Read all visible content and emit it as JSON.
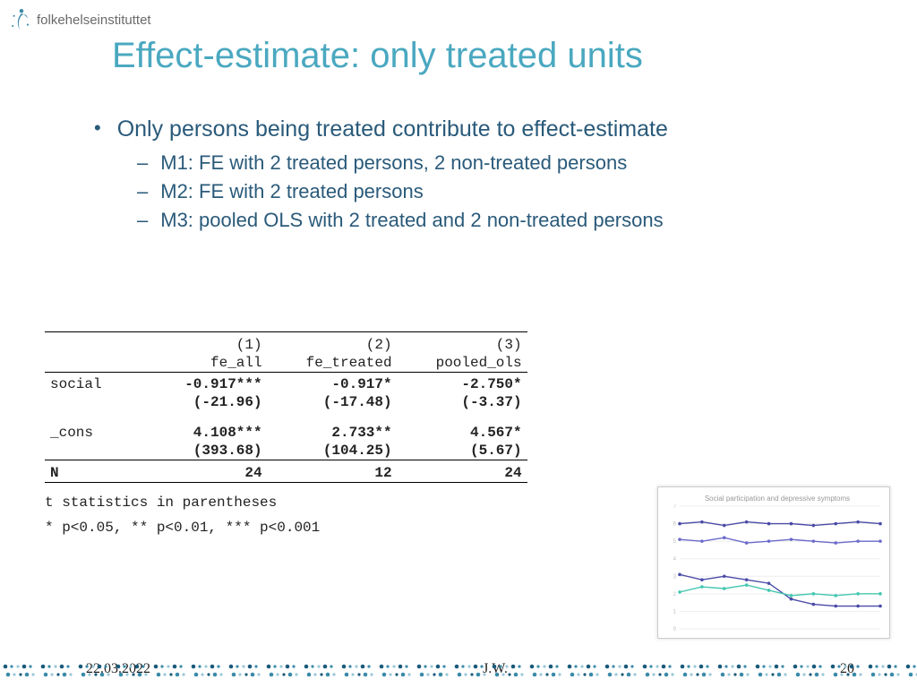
{
  "logo_text": "folkehelseinstituttet",
  "slide_title": "Effect-estimate: only treated units",
  "bullets": {
    "main": "Only persons being treated contribute to effect-estimate",
    "subs": [
      "M1: FE with 2 treated persons, 2 non-treated persons",
      "M2: FE with 2 treated persons",
      "M3: pooled OLS with 2 treated and 2 non-treated persons"
    ]
  },
  "table": {
    "col_nums": [
      "(1)",
      "(2)",
      "(3)"
    ],
    "col_names": [
      "fe_all",
      "fe_treated",
      "pooled_ols"
    ],
    "rows": [
      {
        "label": "social",
        "vals": [
          "-0.917***",
          "-0.917*",
          "-2.750*"
        ],
        "tstats": [
          "(-21.96)",
          "(-17.48)",
          "(-3.37)"
        ]
      },
      {
        "label": "_cons",
        "vals": [
          "4.108***",
          "2.733**",
          "4.567*"
        ],
        "tstats": [
          "(393.68)",
          "(104.25)",
          "(5.67)"
        ]
      }
    ],
    "n_label": "N",
    "n_vals": [
      "24",
      "12",
      "24"
    ],
    "footnote1": "t statistics in parentheses",
    "footnote2": "* p<0.05, ** p<0.01, *** p<0.001"
  },
  "mini_chart": {
    "title": "Social participation and depressive symptoms",
    "ylim": [
      0,
      7
    ],
    "x_count": 10,
    "grid_color": "#eeeeee",
    "series": [
      {
        "color": "#4a4aa8",
        "y": [
          6.0,
          6.1,
          5.9,
          6.1,
          6.0,
          6.0,
          5.9,
          6.0,
          6.1,
          6.0
        ]
      },
      {
        "color": "#6a6acc",
        "y": [
          5.1,
          5.0,
          5.2,
          4.9,
          5.0,
          5.1,
          5.0,
          4.9,
          5.0,
          5.0
        ]
      },
      {
        "color": "#4a4aa8",
        "y": [
          3.1,
          2.8,
          3.0,
          2.8,
          2.6,
          1.7,
          1.4,
          1.3,
          1.3,
          1.3
        ]
      },
      {
        "color": "#45c7b0",
        "y": [
          2.1,
          2.4,
          2.3,
          2.5,
          2.2,
          1.9,
          2.0,
          1.9,
          2.0,
          2.0
        ]
      }
    ]
  },
  "footer": {
    "date": "22.03.2022",
    "author": "J.W.",
    "page": "20"
  },
  "colors": {
    "title": "#4aa8c0",
    "body_text": "#2a5a7a",
    "dot_dark": "#1a5a7a",
    "dot_mid": "#3a8aa8",
    "dot_light": "#9ac8d8"
  }
}
